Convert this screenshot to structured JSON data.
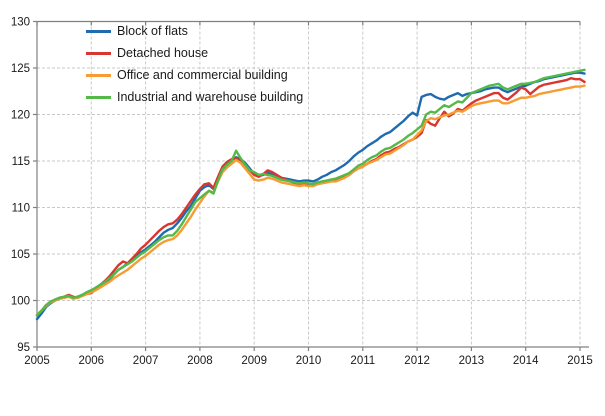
{
  "chart_data": {
    "type": "line",
    "title": "",
    "xlabel": "",
    "ylabel": "",
    "grid": true,
    "legend_position": "top-left",
    "ylim": [
      95,
      130
    ],
    "y_ticks": [
      95,
      100,
      105,
      110,
      115,
      120,
      125,
      130
    ],
    "x_ticks": [
      2005,
      2006,
      2007,
      2008,
      2009,
      2010,
      2011,
      2012,
      2013,
      2014,
      2015
    ],
    "x_start_year": 2005,
    "x_step": "monthly",
    "axis_color": "#808080",
    "grid_color": "#c9c9c9",
    "label_color": "#1a1a1a",
    "series": [
      {
        "name": "Block of flats",
        "color": "#1f6bb0",
        "values": [
          98.0,
          98.6,
          99.3,
          99.7,
          100.0,
          100.2,
          100.3,
          100.5,
          100.3,
          100.4,
          100.6,
          100.8,
          101.0,
          101.3,
          101.6,
          101.9,
          102.3,
          102.8,
          103.3,
          103.6,
          104.0,
          104.4,
          104.8,
          105.2,
          105.5,
          105.9,
          106.3,
          106.8,
          107.3,
          107.6,
          107.8,
          108.3,
          108.9,
          109.6,
          110.2,
          111.0,
          111.8,
          112.2,
          112.4,
          112.0,
          113.2,
          114.3,
          114.8,
          115.1,
          115.4,
          115.2,
          114.8,
          114.2,
          113.6,
          113.4,
          113.5,
          113.7,
          113.6,
          113.4,
          113.2,
          113.1,
          113.0,
          112.9,
          112.8,
          112.9,
          112.9,
          112.8,
          113.0,
          113.3,
          113.5,
          113.8,
          114.0,
          114.3,
          114.6,
          115.0,
          115.5,
          115.9,
          116.2,
          116.6,
          116.9,
          117.2,
          117.6,
          117.9,
          118.1,
          118.5,
          118.9,
          119.3,
          119.8,
          120.2,
          119.9,
          121.9,
          122.1,
          122.2,
          121.9,
          121.7,
          121.6,
          121.9,
          122.1,
          122.3,
          122.0,
          122.2,
          122.3,
          122.4,
          122.5,
          122.7,
          122.8,
          122.9,
          122.9,
          122.6,
          122.4,
          122.6,
          122.8,
          123.0,
          123.1,
          123.3,
          123.5,
          123.6,
          123.8,
          123.9,
          124.0,
          124.1,
          124.2,
          124.3,
          124.4,
          124.5,
          124.5,
          124.4
        ]
      },
      {
        "name": "Detached house",
        "color": "#d8362e",
        "values": [
          98.4,
          98.9,
          99.5,
          99.8,
          100.1,
          100.3,
          100.4,
          100.6,
          100.4,
          100.3,
          100.5,
          100.7,
          100.8,
          101.2,
          101.7,
          102.1,
          102.6,
          103.2,
          103.8,
          104.2,
          104.0,
          104.5,
          105.0,
          105.6,
          106.0,
          106.5,
          107.0,
          107.5,
          107.9,
          108.2,
          108.3,
          108.7,
          109.3,
          110.0,
          110.7,
          111.4,
          112.0,
          112.5,
          112.6,
          112.1,
          113.3,
          114.4,
          114.9,
          115.2,
          115.3,
          115.0,
          114.5,
          114.0,
          113.5,
          113.3,
          113.6,
          114.0,
          113.8,
          113.5,
          113.2,
          113.0,
          112.8,
          112.6,
          112.5,
          112.6,
          112.5,
          112.4,
          112.6,
          112.7,
          112.8,
          112.9,
          112.9,
          113.1,
          113.3,
          113.5,
          113.9,
          114.2,
          114.4,
          114.7,
          115.0,
          115.2,
          115.6,
          115.9,
          116.0,
          116.3,
          116.5,
          116.8,
          117.1,
          117.3,
          117.6,
          118.0,
          119.4,
          119.0,
          118.8,
          119.6,
          120.3,
          119.8,
          120.1,
          120.6,
          120.4,
          120.8,
          121.2,
          121.5,
          121.7,
          121.9,
          122.1,
          122.3,
          122.3,
          121.8,
          121.6,
          122.0,
          122.4,
          122.9,
          122.7,
          122.2,
          122.6,
          123.0,
          123.2,
          123.3,
          123.4,
          123.5,
          123.6,
          123.7,
          123.9,
          123.8,
          123.8,
          123.5
        ]
      },
      {
        "name": "Office and commercial building",
        "color": "#f79b33",
        "values": [
          98.5,
          98.9,
          99.4,
          99.8,
          100.0,
          100.2,
          100.3,
          100.4,
          100.2,
          100.3,
          100.5,
          100.7,
          100.9,
          101.1,
          101.4,
          101.7,
          102.0,
          102.4,
          102.7,
          103.0,
          103.3,
          103.7,
          104.1,
          104.5,
          104.8,
          105.2,
          105.6,
          106.0,
          106.3,
          106.5,
          106.6,
          107.0,
          107.6,
          108.3,
          109.0,
          109.8,
          110.5,
          111.2,
          111.8,
          111.6,
          112.8,
          113.8,
          114.3,
          114.7,
          115.1,
          114.8,
          114.2,
          113.6,
          113.0,
          112.9,
          113.0,
          113.2,
          113.1,
          112.9,
          112.7,
          112.6,
          112.5,
          112.4,
          112.3,
          112.4,
          112.3,
          112.3,
          112.5,
          112.6,
          112.7,
          112.8,
          112.8,
          113.0,
          113.2,
          113.5,
          113.9,
          114.2,
          114.4,
          114.7,
          114.9,
          115.1,
          115.4,
          115.7,
          115.8,
          116.1,
          116.4,
          116.7,
          117.1,
          117.3,
          117.8,
          118.3,
          119.3,
          119.6,
          119.5,
          119.7,
          119.9,
          120.0,
          120.2,
          120.4,
          120.3,
          120.6,
          120.9,
          121.1,
          121.2,
          121.3,
          121.4,
          121.5,
          121.5,
          121.2,
          121.2,
          121.4,
          121.6,
          121.8,
          121.8,
          121.9,
          122.0,
          122.2,
          122.3,
          122.4,
          122.5,
          122.6,
          122.7,
          122.8,
          122.9,
          123.0,
          123.0,
          123.1
        ]
      },
      {
        "name": "Industrial and warehouse building",
        "color": "#54b947",
        "values": [
          98.4,
          98.9,
          99.5,
          99.9,
          100.1,
          100.3,
          100.4,
          100.5,
          100.3,
          100.4,
          100.6,
          100.9,
          101.1,
          101.4,
          101.7,
          102.0,
          102.4,
          102.8,
          103.3,
          103.6,
          103.9,
          104.2,
          104.6,
          105.0,
          105.3,
          105.7,
          106.1,
          106.5,
          106.8,
          107.0,
          107.0,
          107.5,
          108.2,
          109.0,
          109.8,
          110.6,
          111.0,
          111.4,
          111.8,
          111.5,
          112.9,
          114.1,
          114.6,
          115.0,
          116.1,
          115.3,
          114.6,
          114.0,
          113.8,
          113.5,
          113.6,
          113.5,
          113.4,
          113.2,
          113.0,
          112.9,
          112.8,
          112.7,
          112.6,
          112.7,
          112.6,
          112.5,
          112.7,
          112.8,
          112.9,
          113.0,
          113.1,
          113.3,
          113.5,
          113.7,
          114.1,
          114.5,
          114.7,
          115.1,
          115.4,
          115.6,
          116.0,
          116.3,
          116.4,
          116.7,
          117.0,
          117.3,
          117.7,
          118.0,
          118.4,
          118.8,
          120.0,
          120.3,
          120.2,
          120.6,
          121.0,
          120.8,
          121.1,
          121.4,
          121.3,
          121.8,
          122.3,
          122.5,
          122.7,
          122.9,
          123.1,
          123.2,
          123.3,
          122.9,
          122.7,
          122.9,
          123.1,
          123.3,
          123.3,
          123.4,
          123.5,
          123.7,
          123.9,
          124.0,
          124.1,
          124.2,
          124.3,
          124.4,
          124.5,
          124.6,
          124.7,
          124.8
        ]
      }
    ]
  }
}
